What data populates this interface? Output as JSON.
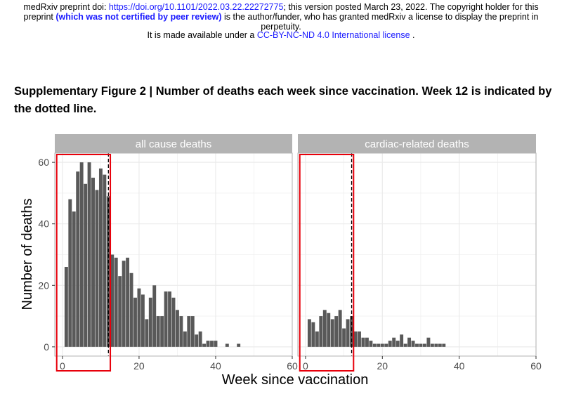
{
  "header": {
    "line1_prefix": "medRxiv preprint doi: ",
    "doi_link": "https://doi.org/10.1101/2022.03.22.22272775",
    "line1_suffix": "; this version posted March 23, 2022. The copyright holder for this",
    "line2_prefix": "preprint ",
    "line2_bold": "(which was not certified by peer review)",
    "line2_suffix": " is the author/funder, who has granted medRxiv a license to display the preprint in",
    "line3": "perpetuity.",
    "line4_prefix": "It is made available under a ",
    "license_link": "CC-BY-NC-ND 4.0 International license",
    "line4_suffix": " ."
  },
  "caption": "Supplementary Figure 2 | Number of deaths each week since vaccination. Week 12 is indicated by the dotted line.",
  "colors": {
    "bar": "#595959",
    "panel_bg": "#ffffff",
    "panel_border": "#b3b3b3",
    "grid_major": "#ebebeb",
    "strip_bg": "#b3b3b3",
    "highlight": "#e8000b"
  },
  "chart_data": {
    "type": "bar",
    "xlabel": "Week since vaccination",
    "ylabel": "Number of deaths",
    "xlim": [
      -2,
      60
    ],
    "ylim": [
      -3,
      63
    ],
    "xticks": [
      0,
      20,
      40,
      60
    ],
    "yticks": [
      0,
      20,
      40,
      60
    ],
    "reference_line_week": 12,
    "highlight_range_weeks": [
      -1.5,
      12.5
    ],
    "panels": [
      {
        "name": "all cause deaths",
        "weeks": [
          1,
          2,
          3,
          4,
          5,
          6,
          7,
          8,
          9,
          10,
          11,
          12,
          13,
          14,
          15,
          16,
          17,
          18,
          19,
          20,
          21,
          22,
          23,
          24,
          25,
          26,
          27,
          28,
          29,
          30,
          31,
          32,
          33,
          34,
          35,
          36,
          37,
          38,
          39,
          40,
          43,
          46
        ],
        "values": [
          26,
          48,
          44,
          57,
          60,
          53,
          60,
          55,
          51,
          58,
          56,
          49,
          30,
          29,
          23,
          28,
          29,
          24,
          16,
          19,
          17,
          9,
          16,
          20,
          10,
          10,
          18,
          18,
          16,
          12,
          10,
          5,
          10,
          10,
          4,
          5,
          1,
          2,
          2,
          2,
          1,
          1
        ]
      },
      {
        "name": "cardiac-related deaths",
        "weeks": [
          1,
          2,
          3,
          4,
          5,
          6,
          7,
          8,
          9,
          10,
          11,
          12,
          13,
          14,
          15,
          16,
          17,
          18,
          19,
          20,
          21,
          22,
          23,
          24,
          25,
          26,
          27,
          28,
          29,
          30,
          31,
          32,
          33,
          34,
          35,
          36
        ],
        "values": [
          9,
          8,
          5,
          10,
          12,
          11,
          9,
          10,
          12,
          6,
          9,
          10,
          5,
          5,
          3,
          3,
          2,
          1,
          1,
          1,
          1,
          2,
          3,
          2,
          4,
          1,
          3,
          2,
          1,
          1,
          1,
          3,
          1,
          1,
          1,
          1
        ]
      }
    ]
  }
}
